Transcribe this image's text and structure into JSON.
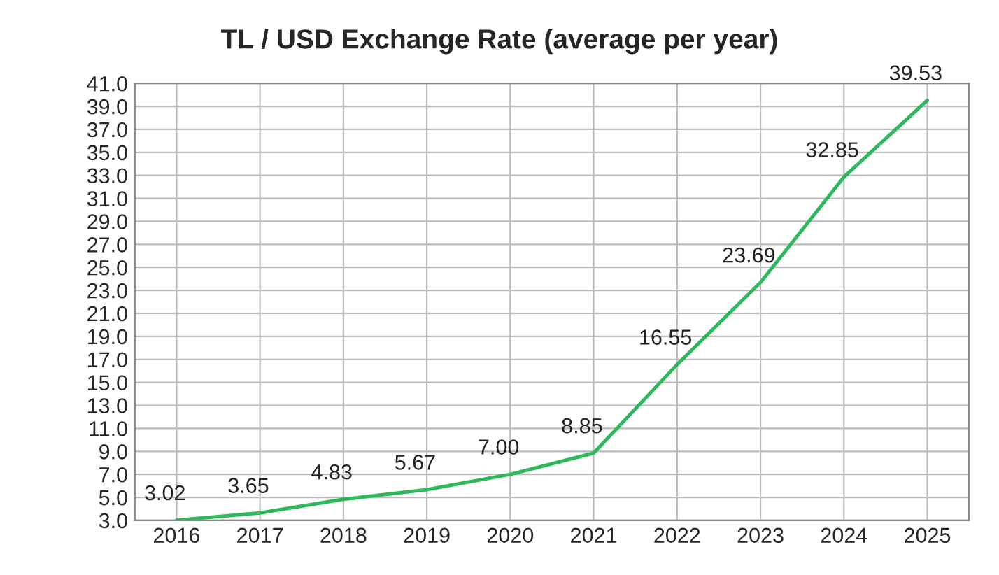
{
  "chart_data": {
    "type": "line",
    "title": "TL / USD Exchange Rate (average per year)",
    "categories": [
      "2016",
      "2017",
      "2018",
      "2019",
      "2020",
      "2021",
      "2022",
      "2023",
      "2024",
      "2025"
    ],
    "series": [
      {
        "color": "#2eb85c",
        "values": [
          3.02,
          3.65,
          4.83,
          5.67,
          7.0,
          8.85,
          16.55,
          23.69,
          32.85,
          39.53
        ],
        "value_labels": [
          "3.02",
          "3.65",
          "4.83",
          "5.67",
          "7.00",
          "8.85",
          "16.55",
          "23.69",
          "32.85",
          "39.53"
        ]
      }
    ],
    "ylim": [
      3.0,
      41.0
    ],
    "yticks": [
      {
        "value": 3,
        "label": "3.0"
      },
      {
        "value": 5,
        "label": "5.0"
      },
      {
        "value": 7,
        "label": "7.0"
      },
      {
        "value": 9,
        "label": "9.0"
      },
      {
        "value": 11,
        "label": "11.0"
      },
      {
        "value": 13,
        "label": "13.0"
      },
      {
        "value": 15,
        "label": "15.0"
      },
      {
        "value": 17,
        "label": "17.0"
      },
      {
        "value": 19,
        "label": "19.0"
      },
      {
        "value": 21,
        "label": "21.0"
      },
      {
        "value": 23,
        "label": "23.0"
      },
      {
        "value": 25,
        "label": "25.0"
      },
      {
        "value": 27,
        "label": "27.0"
      },
      {
        "value": 29,
        "label": "29.0"
      },
      {
        "value": 31,
        "label": "31.0"
      },
      {
        "value": 33,
        "label": "33.0"
      },
      {
        "value": 35,
        "label": "35.0"
      },
      {
        "value": 37,
        "label": "37.0"
      },
      {
        "value": 39,
        "label": "39.0"
      },
      {
        "value": 41,
        "label": "41.0"
      }
    ],
    "grid": true,
    "marker": "none",
    "line_style": "solid",
    "legend": false
  }
}
